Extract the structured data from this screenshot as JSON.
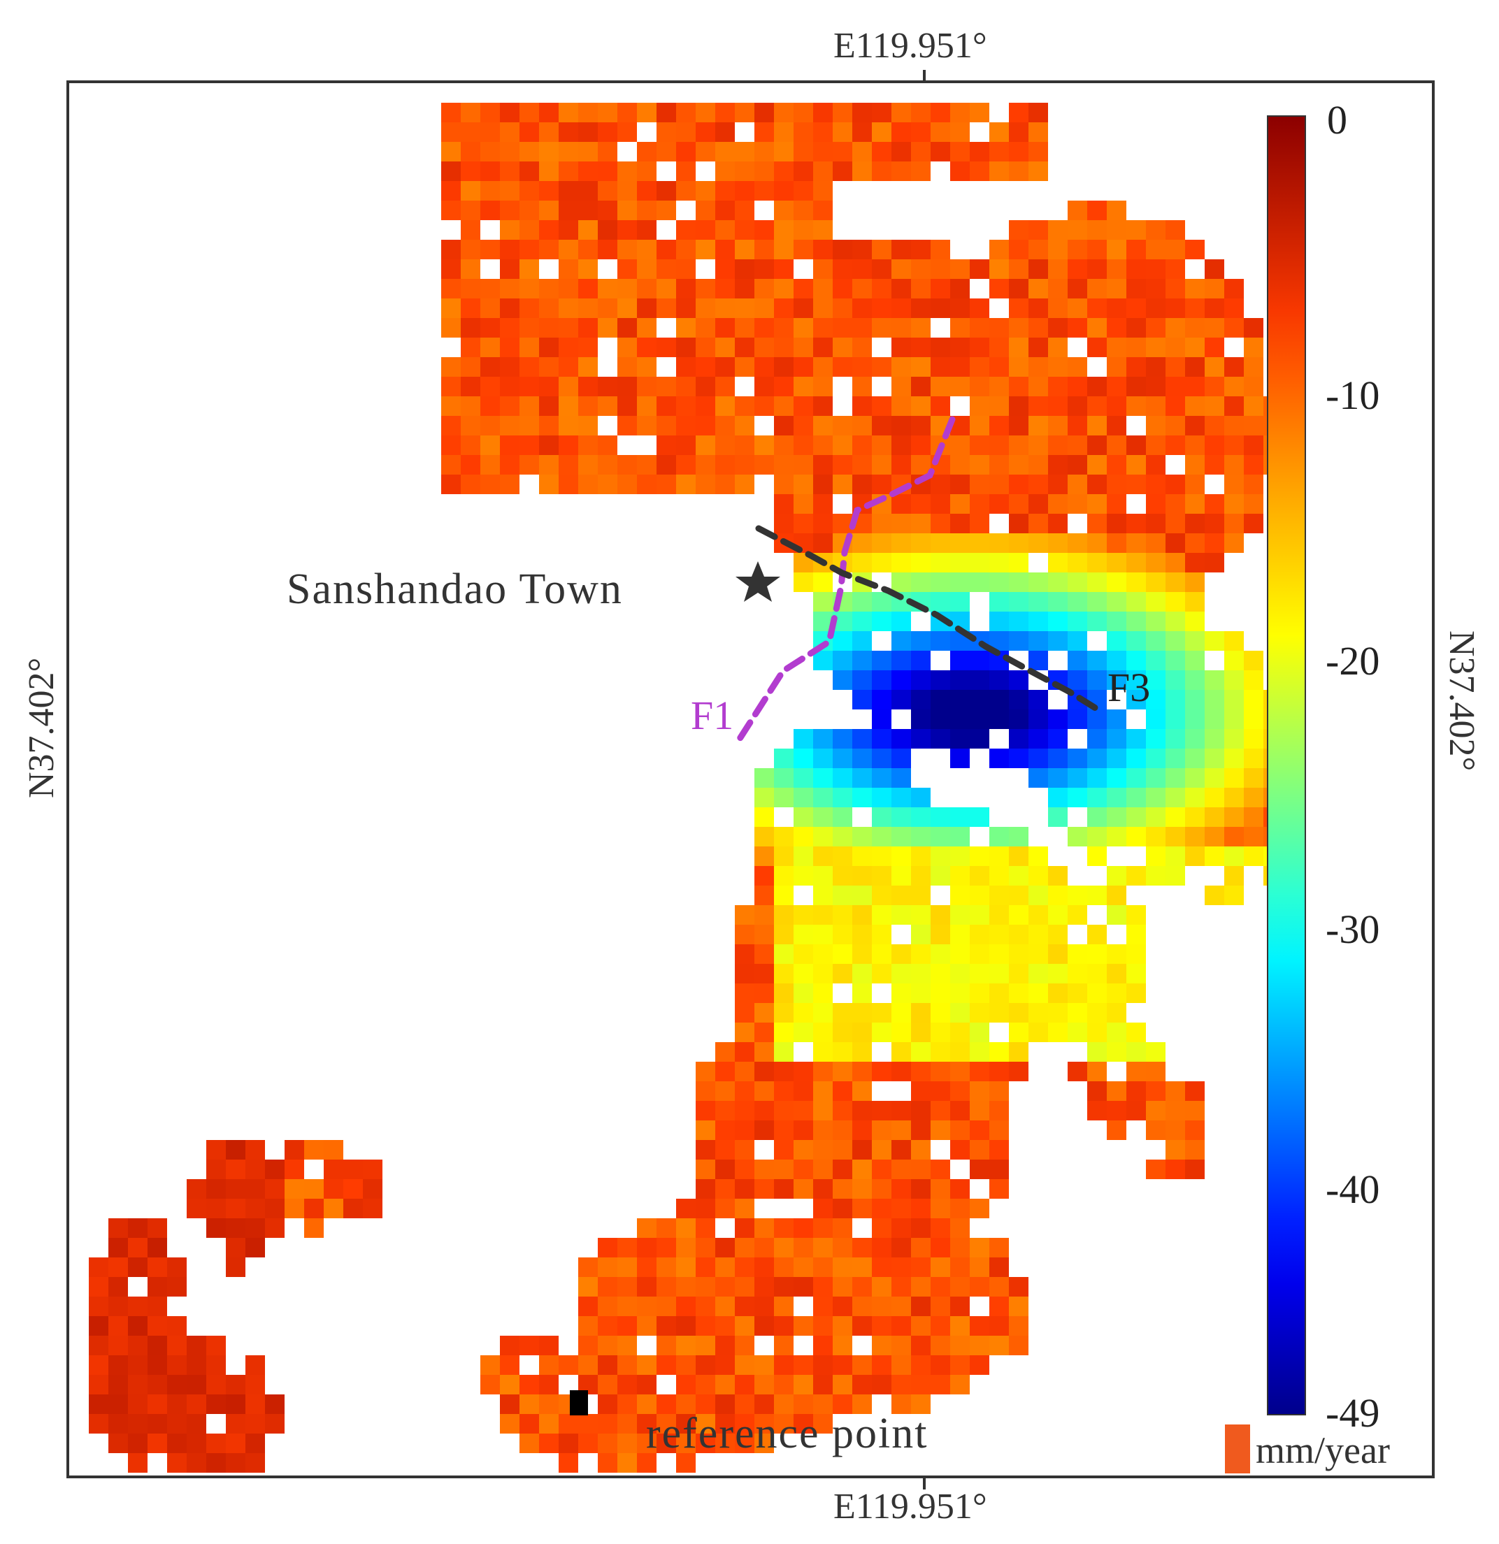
{
  "axes": {
    "top_label": "E119.951°",
    "bottom_label": "E119.951°",
    "left_label": "N37.402°",
    "right_label": "N37.402°"
  },
  "annotations": {
    "town": "Sanshandao Town",
    "fault_1": "F1",
    "fault_3": "F3",
    "reference": "reference point"
  },
  "colorbar": {
    "unit": "mm/year",
    "min": -49,
    "max": 0,
    "ticks": [
      "0",
      "-10",
      "-20",
      "-30",
      "-40",
      "-49"
    ]
  },
  "colors": {
    "fault_1": "#b23ccf",
    "fault_3": "#333333",
    "star": "#333333",
    "reference_marker": "#000000"
  }
}
